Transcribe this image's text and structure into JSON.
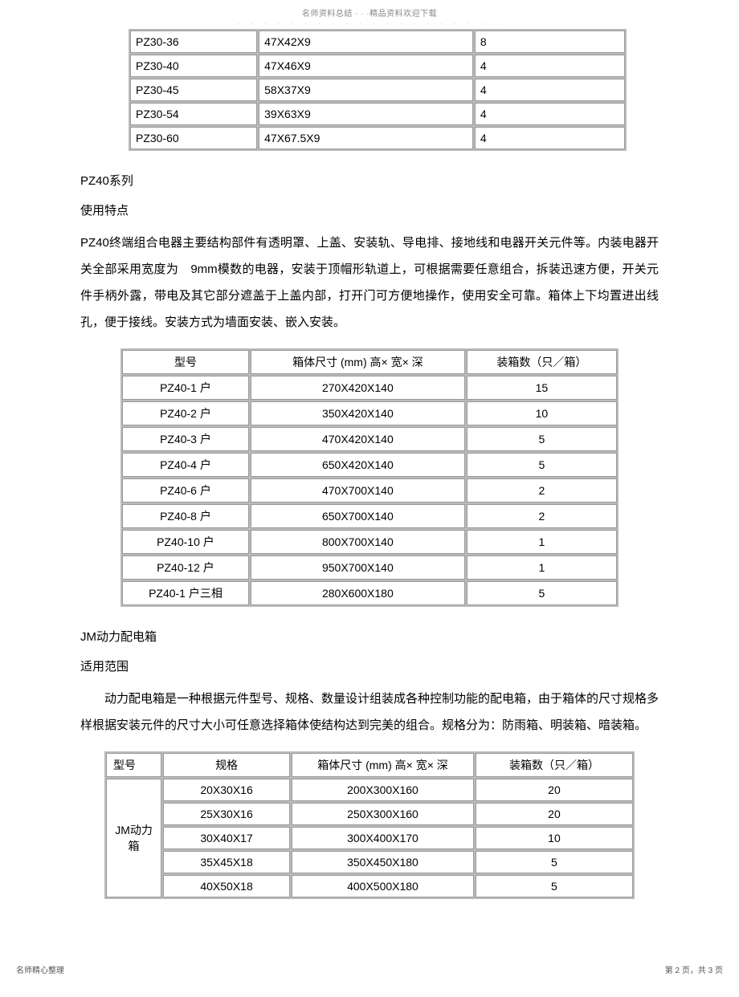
{
  "header": {
    "line1": "名师资料总结 · · ·精品资料欢迎下载",
    "line2": "· · · · · · · · · · · · · · · · · · · ·"
  },
  "pz30_table": {
    "rows": [
      {
        "model": "PZ30-36",
        "size": "47X42X9",
        "qty": "8"
      },
      {
        "model": "PZ30-40",
        "size": "47X46X9",
        "qty": "4"
      },
      {
        "model": "PZ30-45",
        "size": "58X37X9",
        "qty": "4"
      },
      {
        "model": "PZ30-54",
        "size": "39X63X9",
        "qty": "4"
      },
      {
        "model": "PZ30-60",
        "size": "47X67.5X9",
        "qty": "4"
      }
    ],
    "col_widths": [
      "160px",
      "270px",
      "190px"
    ]
  },
  "pz40_section": {
    "title": "PZ40系列",
    "subtitle": "使用特点",
    "body": "PZ40终端组合电器主要结构部件有透明罩、上盖、安装轨、导电排、接地线和电器开关元件等。内装电器开关全部采用宽度为　9mm模数的电器，安装于顶帽形轨道上，可根据需要任意组合，拆装迅速方便，开关元件手柄外露，带电及其它部分遮盖于上盖内部，打开门可方便地操作，使用安全可靠。箱体上下均置进出线孔，便于接线。安装方式为墙面安装、嵌入安装。"
  },
  "pz40_table": {
    "headers": [
      "型号",
      "箱体尺寸 (mm) 高× 宽× 深",
      "装箱数（只／箱）"
    ],
    "rows": [
      {
        "model": "PZ40-1 户",
        "size": "270X420X140",
        "qty": "15"
      },
      {
        "model": "PZ40-2 户",
        "size": "350X420X140",
        "qty": "10"
      },
      {
        "model": "PZ40-3 户",
        "size": "470X420X140",
        "qty": "5"
      },
      {
        "model": "PZ40-4 户",
        "size": "650X420X140",
        "qty": "5"
      },
      {
        "model": "PZ40-6 户",
        "size": "470X700X140",
        "qty": "2"
      },
      {
        "model": "PZ40-8 户",
        "size": "650X700X140",
        "qty": "2"
      },
      {
        "model": "PZ40-10 户",
        "size": "800X700X140",
        "qty": "1"
      },
      {
        "model": "PZ40-12 户",
        "size": "950X700X140",
        "qty": "1"
      },
      {
        "model": "PZ40-1 户三相",
        "size": "280X600X180",
        "qty": "5"
      }
    ],
    "col_widths": [
      "160px",
      "270px",
      "190px"
    ]
  },
  "jm_section": {
    "title": "JM动力配电箱",
    "subtitle": "适用范围",
    "body": "动力配电箱是一种根据元件型号、规格、数量设计组装成各种控制功能的配电箱，由于箱体的尺寸规格多样根据安装元件的尺寸大小可任意选择箱体使结构达到完美的组合。规格分为：防雨箱、明装箱、暗装箱。"
  },
  "jm_table": {
    "headers": [
      "型号",
      "规格",
      "箱体尺寸 (mm) 高× 宽× 深",
      "装箱数（只／箱）"
    ],
    "rowhead": "JM动力箱",
    "rows": [
      {
        "spec": "20X30X16",
        "size": "200X300X160",
        "qty": "20"
      },
      {
        "spec": "25X30X16",
        "size": "250X300X160",
        "qty": "20"
      },
      {
        "spec": "30X40X17",
        "size": "300X400X170",
        "qty": "10"
      },
      {
        "spec": "35X45X18",
        "size": "350X450X180",
        "qty": "5"
      },
      {
        "spec": "40X50X18",
        "size": "400X500X180",
        "qty": "5"
      }
    ],
    "col_widths": [
      "70px",
      "160px",
      "230px",
      "200px"
    ]
  },
  "footer": {
    "left": "名师精心整理",
    "right": "第 2 页，共 3 页",
    "dots": ". . . . . . ."
  }
}
